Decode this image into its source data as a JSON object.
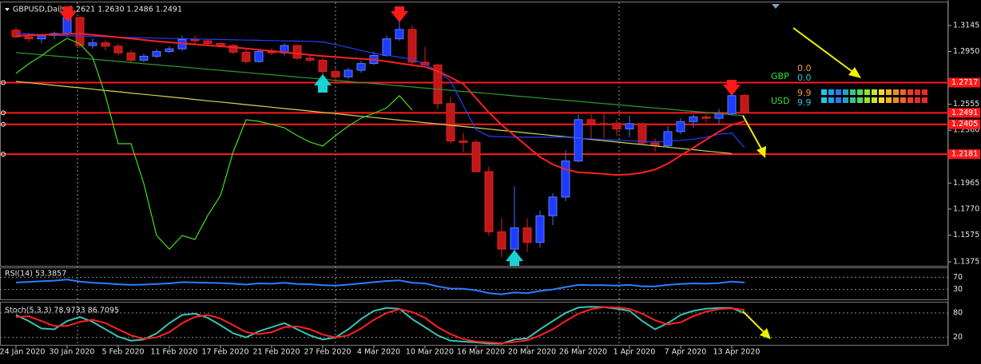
{
  "chart_data": {
    "type": "candlestick",
    "title": "GBPUSD,Daily 1.2621 1.2630 1.2486 1.2491",
    "categories": [
      "24 Jan 2020",
      null,
      null,
      null,
      "30 Jan 2020",
      null,
      null,
      null,
      "5 Feb 2020",
      null,
      null,
      null,
      "11 Feb 2020",
      null,
      null,
      null,
      "17 Feb 2020",
      null,
      null,
      null,
      "21 Feb 2020",
      null,
      null,
      null,
      "27 Feb 2020",
      null,
      null,
      null,
      "4 Mar 2020",
      null,
      null,
      null,
      "10 Mar 2020",
      null,
      null,
      null,
      "16 Mar 2020",
      null,
      null,
      null,
      "20 Mar 2020",
      null,
      null,
      null,
      "26 Mar 2020",
      null,
      null,
      null,
      "1 Apr 2020",
      null,
      null,
      null,
      "7 Apr 2020",
      null,
      null,
      null,
      "13 Apr 2020",
      null
    ],
    "open": [
      1.311,
      1.306,
      1.3045,
      1.307,
      1.3085,
      1.3205,
      1.2995,
      1.3015,
      1.299,
      1.294,
      1.2885,
      1.2915,
      1.295,
      1.297,
      1.304,
      1.303,
      1.301,
      1.2995,
      1.2945,
      1.2875,
      1.295,
      1.294,
      1.2995,
      1.29,
      1.2885,
      1.28,
      1.276,
      1.281,
      1.286,
      1.292,
      1.3045,
      1.3115,
      1.287,
      1.285,
      1.256,
      1.228,
      1.227,
      1.205,
      1.16,
      1.147,
      1.163,
      1.152,
      1.172,
      1.186,
      1.213,
      1.244,
      1.241,
      1.241,
      1.237,
      1.241,
      1.2265,
      1.2245,
      1.235,
      1.2425,
      1.246,
      1.245,
      1.2485,
      1.2621
    ],
    "high": [
      1.313,
      1.309,
      1.308,
      1.31,
      1.3235,
      1.321,
      1.305,
      1.3035,
      1.301,
      1.296,
      1.2935,
      1.297,
      1.299,
      1.307,
      1.307,
      1.3045,
      1.302,
      1.3005,
      1.2965,
      1.296,
      1.2975,
      1.301,
      1.3,
      1.292,
      1.29,
      1.283,
      1.283,
      1.288,
      1.295,
      1.307,
      1.32,
      1.3145,
      1.2985,
      1.286,
      1.261,
      1.234,
      1.229,
      1.209,
      1.17,
      1.194,
      1.17,
      1.176,
      1.189,
      1.221,
      1.248,
      1.248,
      1.2485,
      1.244,
      1.247,
      1.242,
      1.23,
      1.239,
      1.245,
      1.248,
      1.248,
      1.252,
      1.265,
      1.263
    ],
    "low": [
      1.305,
      1.302,
      1.301,
      1.304,
      1.306,
      1.2975,
      1.297,
      1.296,
      1.292,
      1.287,
      1.287,
      1.29,
      1.2935,
      1.2955,
      1.301,
      1.3,
      1.299,
      1.293,
      1.286,
      1.2865,
      1.2925,
      1.292,
      1.289,
      1.287,
      1.2725,
      1.272,
      1.2745,
      1.279,
      1.285,
      1.291,
      1.303,
      1.285,
      1.283,
      1.252,
      1.226,
      1.22,
      1.205,
      1.157,
      1.141,
      1.145,
      1.145,
      1.148,
      1.165,
      1.183,
      1.212,
      1.23,
      1.23,
      1.232,
      1.231,
      1.225,
      1.22,
      1.223,
      1.233,
      1.238,
      1.242,
      1.241,
      1.247,
      1.2486
    ],
    "close": [
      1.306,
      1.3045,
      1.307,
      1.3085,
      1.3205,
      1.2995,
      1.3015,
      1.299,
      1.294,
      1.2885,
      1.2915,
      1.295,
      1.297,
      1.304,
      1.303,
      1.301,
      1.299,
      1.2945,
      1.2875,
      1.295,
      1.294,
      1.2995,
      1.29,
      1.2885,
      1.28,
      1.276,
      1.281,
      1.286,
      1.292,
      1.3045,
      1.3115,
      1.287,
      1.285,
      1.256,
      1.228,
      1.227,
      1.205,
      1.16,
      1.147,
      1.163,
      1.152,
      1.172,
      1.186,
      1.213,
      1.244,
      1.241,
      1.2405,
      1.237,
      1.241,
      1.2265,
      1.2245,
      1.235,
      1.2425,
      1.246,
      1.245,
      1.2485,
      1.262,
      1.2491
    ],
    "up_color": "#1e3cff",
    "down_color": "#c01818",
    "ylim": [
      1.1345,
      1.3306
    ],
    "yticks": [
      1.3145,
      {
        "value": 1.295,
        "label": "1.2950"
      },
      1.2555,
      {
        "value": 1.236,
        "label": "1.2360"
      },
      1.1965,
      {
        "value": 1.177,
        "label": "1.1770"
      },
      1.1575,
      1.1375
    ],
    "levels": {
      "color": "#ff1a1a",
      "values": [
        1.2717,
        1.2491,
        1.2405,
        1.2181
      ]
    },
    "lines": [
      {
        "color": "#d4d45a",
        "values": [
          1.2726,
          1.2716,
          1.2707,
          1.2697,
          1.2687,
          1.2678,
          1.2668,
          1.2658,
          1.2649,
          1.2639,
          1.2629,
          1.262,
          1.261,
          1.2601,
          1.2591,
          1.2581,
          1.2572,
          1.2562,
          1.2552,
          1.2543,
          1.2533,
          1.2523,
          1.2514,
          1.2504,
          1.2494,
          1.2485,
          1.2475,
          1.2465,
          1.2456,
          1.2446,
          1.2436,
          1.2427,
          1.2417,
          1.2408,
          1.2398,
          1.2388,
          1.2379,
          1.2369,
          1.2359,
          1.235,
          1.234,
          1.233,
          1.2321,
          1.2311,
          1.2301,
          1.2292,
          1.2282,
          1.2272,
          1.2263,
          1.2253,
          1.2243,
          1.2234,
          1.2224,
          1.2215,
          1.2205,
          1.2195,
          1.2186,
          null
        ]
      },
      {
        "color": "#2e9b2e",
        "values": [
          1.2942,
          1.2934,
          1.2925,
          1.2917,
          1.2909,
          1.2901,
          1.2892,
          1.2884,
          1.2876,
          1.2867,
          1.2859,
          1.2851,
          1.2842,
          1.2834,
          1.2826,
          1.2817,
          1.2809,
          1.2801,
          1.2793,
          1.2784,
          1.2776,
          1.2768,
          1.2759,
          1.2751,
          1.2743,
          1.2734,
          1.2726,
          1.2718,
          1.271,
          1.2701,
          1.2693,
          1.2685,
          1.2676,
          1.2668,
          1.266,
          1.2651,
          1.2643,
          1.2635,
          1.2627,
          1.2618,
          1.261,
          1.2602,
          1.2593,
          1.2585,
          1.2577,
          1.2568,
          1.256,
          1.2552,
          1.2544,
          1.2535,
          1.2527,
          1.2519,
          1.251,
          1.2502,
          1.2494,
          1.2485,
          1.2477,
          1.2469
        ]
      },
      {
        "color": "#44dd22",
        "values": [
          1.2786,
          1.2858,
          1.2918,
          1.2989,
          1.3049,
          1.3007,
          1.2906,
          1.2619,
          1.226,
          1.226,
          1.1961,
          1.1572,
          1.147,
          1.1572,
          1.1542,
          1.1722,
          1.1871,
          1.22,
          1.2439,
          1.2427,
          1.2403,
          1.2379,
          1.232,
          1.2272,
          1.2242,
          1.232,
          1.2391,
          1.2451,
          1.2487,
          1.2529,
          1.2619,
          1.2511,
          null,
          null,
          null,
          null,
          null,
          null,
          null,
          null,
          null,
          null,
          null,
          null,
          null,
          null,
          null,
          null,
          null,
          null,
          null,
          null,
          null,
          null,
          null,
          null,
          null,
          null
        ]
      },
      {
        "color": "#2040ff",
        "values": [
          1.3085,
          1.3081,
          1.3076,
          1.3072,
          1.3067,
          1.3067,
          1.3064,
          1.3061,
          1.3058,
          1.3055,
          1.3053,
          1.305,
          1.3048,
          1.3046,
          1.3044,
          1.3042,
          1.304,
          1.3038,
          1.3036,
          1.3034,
          1.3032,
          1.303,
          1.3028,
          1.3026,
          1.3022,
          1.3002,
          1.2981,
          1.2958,
          1.2936,
          1.2922,
          1.2908,
          1.2892,
          1.2852,
          1.2804,
          1.273,
          1.2544,
          1.2365,
          1.2316,
          1.2312,
          1.2308,
          1.2308,
          1.2308,
          1.2308,
          1.2308,
          1.23,
          1.2296,
          1.2291,
          1.2286,
          1.2282,
          1.2277,
          1.2272,
          1.2278,
          1.2285,
          1.2294,
          1.2308,
          1.233,
          1.234,
          1.223
        ]
      },
      {
        "color": "#ff2020",
        "values": [
          1.3067,
          1.3071,
          1.3074,
          1.3078,
          1.3081,
          1.3085,
          1.3075,
          1.3066,
          1.3056,
          1.3047,
          1.3037,
          1.3027,
          1.3019,
          1.3011,
          1.3004,
          1.2997,
          1.2989,
          1.2982,
          1.2973,
          1.2963,
          1.2954,
          1.2944,
          1.2935,
          1.2925,
          1.2916,
          1.2909,
          1.2902,
          1.2896,
          1.2889,
          1.2876,
          1.2862,
          1.2848,
          1.2835,
          1.2804,
          1.2756,
          1.2708,
          1.26,
          1.2493,
          1.24,
          1.232,
          1.224,
          1.216,
          1.2104,
          1.2068,
          1.2045,
          1.204,
          1.2033,
          1.2025,
          1.203,
          1.2042,
          1.2066,
          1.211,
          1.217,
          1.223,
          1.229,
          1.235,
          1.24,
          1.2427
        ]
      }
    ],
    "strength": {
      "rows": [
        {
          "currency": "GBP",
          "values": [
            0,
            0
          ],
          "value_labels": [
            "0.0",
            "0.0"
          ]
        },
        {
          "currency": "USD",
          "values": [
            9.9,
            9.9
          ]
        }
      ]
    },
    "panels": [
      {
        "title": "RSI(14) 53.3857",
        "ylim": [
          0,
          100
        ],
        "yticks": [
          70,
          30
        ],
        "series": [
          {
            "color": "#2a7fff",
            "values": [
              53,
              55,
              57,
              59,
              63,
              56,
              52,
              50,
              47,
              45,
              46,
              48,
              50,
              54,
              53,
              52,
              51,
              49,
              46,
              50,
              49,
              52,
              48,
              47,
              44,
              43,
              46,
              50,
              54,
              58,
              60,
              52,
              50,
              40,
              33,
              32,
              27,
              18,
              14,
              20,
              18,
              25,
              30,
              38,
              45,
              44,
              44,
              43,
              45,
              40,
              40,
              45,
              48,
              50,
              49,
              51,
              56,
              53
            ]
          }
        ]
      },
      {
        "title": "Stoch(5,3,3) 78.9733 86.7095",
        "ylim": [
          0,
          100
        ],
        "yticks": [
          80,
          20
        ],
        "series": [
          {
            "color": "#3cc0b4",
            "values": [
              75,
              60,
              42,
              40,
              60,
              70,
              58,
              40,
              22,
              12,
              15,
              30,
              55,
              75,
              78,
              68,
              50,
              30,
              20,
              35,
              45,
              55,
              40,
              25,
              15,
              20,
              40,
              65,
              85,
              92,
              90,
              65,
              45,
              25,
              12,
              10,
              8,
              5,
              5,
              15,
              18,
              40,
              60,
              80,
              93,
              95,
              94,
              90,
              85,
              60,
              40,
              55,
              75,
              85,
              90,
              92,
              92,
              79
            ]
          },
          {
            "color": "#ff2020",
            "values": [
              70,
              72,
              60,
              48,
              48,
              58,
              63,
              55,
              40,
              25,
              17,
              20,
              33,
              55,
              70,
              75,
              66,
              50,
              33,
              28,
              33,
              45,
              47,
              40,
              27,
              20,
              25,
              42,
              63,
              80,
              89,
              82,
              68,
              45,
              28,
              16,
              10,
              8,
              6,
              9,
              13,
              25,
              40,
              60,
              78,
              89,
              94,
              93,
              90,
              78,
              62,
              52,
              57,
              72,
              83,
              89,
              91,
              87
            ]
          }
        ]
      }
    ]
  }
}
